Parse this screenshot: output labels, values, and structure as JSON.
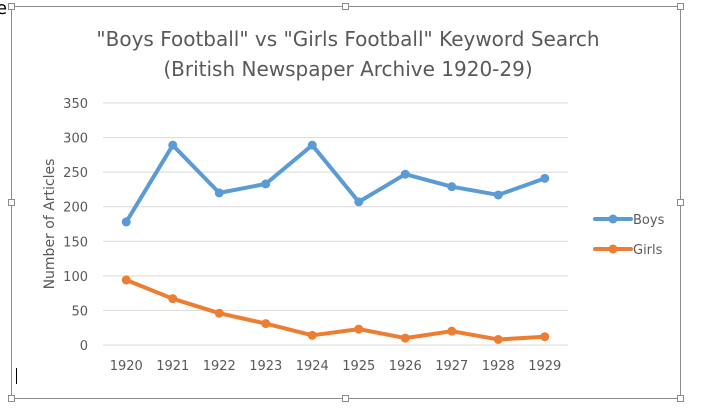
{
  "stray_text": "e",
  "chart_data": {
    "type": "line",
    "title": "\"Boys Football\" vs \"Girls Football\" Keyword Search",
    "subtitle": "(British Newspaper Archive 1920-29)",
    "xlabel": "",
    "ylabel": "Number of Articles",
    "ylim": [
      0,
      350
    ],
    "yticks": [
      0,
      50,
      100,
      150,
      200,
      250,
      300,
      350
    ],
    "grid": true,
    "legend_position": "right",
    "categories": [
      "1920",
      "1921",
      "1922",
      "1923",
      "1924",
      "1925",
      "1926",
      "1927",
      "1928",
      "1929"
    ],
    "series": [
      {
        "name": "Boys",
        "color": "#5b9bd5",
        "values": [
          178,
          289,
          220,
          233,
          289,
          207,
          247,
          229,
          217,
          241
        ]
      },
      {
        "name": "Girls",
        "color": "#ed7d31",
        "values": [
          94,
          67,
          46,
          31,
          14,
          23,
          10,
          20,
          8,
          12
        ]
      }
    ]
  }
}
